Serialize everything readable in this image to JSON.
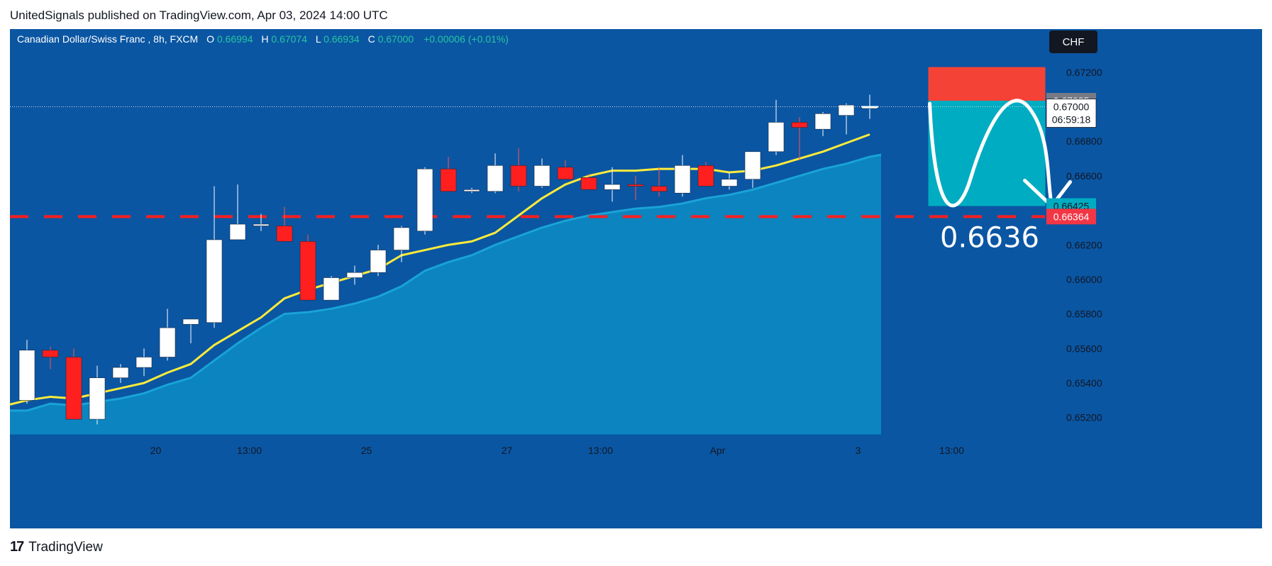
{
  "header": {
    "text": "UnitedSignals published on TradingView.com, Apr 03, 2024 14:00 UTC"
  },
  "footer": {
    "brand": "TradingView",
    "logo_glyph": "17"
  },
  "chart_data": {
    "type": "candlestick",
    "legend": {
      "symbol": "Canadian Dollar/Swiss Franc , 8h, FXCM",
      "o_label": "O",
      "o": "0.66994",
      "h_label": "H",
      "h": "0.67074",
      "l_label": "L",
      "l": "0.66934",
      "c_label": "C",
      "c": "0.67000",
      "change": "+0.00006 (+0.01%)"
    },
    "currency_badge": "CHF",
    "ylim": [
      0.651,
      0.6745
    ],
    "y_ticks": [
      "0.67200",
      "0.66800",
      "0.66600",
      "0.66200",
      "0.66000",
      "0.65800",
      "0.65600",
      "0.65400",
      "0.65200"
    ],
    "x_ticks": [
      {
        "label": "20",
        "i": 5.5
      },
      {
        "label": "13:00",
        "i": 9.5
      },
      {
        "label": "25",
        "i": 14.5
      },
      {
        "label": "27",
        "i": 20.5
      },
      {
        "label": "13:00",
        "i": 24.5
      },
      {
        "label": "Apr",
        "i": 29.5
      },
      {
        "label": "3",
        "i": 35.5
      },
      {
        "label": "13:00",
        "i": 39.5
      }
    ],
    "candles": [
      {
        "o": 0.653,
        "h": 0.6565,
        "l": 0.6528,
        "c": 0.6559
      },
      {
        "o": 0.6559,
        "h": 0.6561,
        "l": 0.6548,
        "c": 0.6555
      },
      {
        "o": 0.6555,
        "h": 0.656,
        "l": 0.6519,
        "c": 0.6519
      },
      {
        "o": 0.6519,
        "h": 0.655,
        "l": 0.6516,
        "c": 0.6543
      },
      {
        "o": 0.6543,
        "h": 0.6551,
        "l": 0.654,
        "c": 0.6549
      },
      {
        "o": 0.6549,
        "h": 0.656,
        "l": 0.6544,
        "c": 0.6555
      },
      {
        "o": 0.6555,
        "h": 0.6583,
        "l": 0.6553,
        "c": 0.6572
      },
      {
        "o": 0.6574,
        "h": 0.6576,
        "l": 0.6563,
        "c": 0.6577
      },
      {
        "o": 0.6575,
        "h": 0.6654,
        "l": 0.6572,
        "c": 0.6623
      },
      {
        "o": 0.6623,
        "h": 0.6655,
        "l": 0.6623,
        "c": 0.6632
      },
      {
        "o": 0.6631,
        "h": 0.6638,
        "l": 0.6628,
        "c": 0.6632
      },
      {
        "o": 0.6631,
        "h": 0.6642,
        "l": 0.6622,
        "c": 0.6622
      },
      {
        "o": 0.6622,
        "h": 0.6626,
        "l": 0.6588,
        "c": 0.6588
      },
      {
        "o": 0.6588,
        "h": 0.6602,
        "l": 0.6588,
        "c": 0.6601
      },
      {
        "o": 0.6601,
        "h": 0.6608,
        "l": 0.6597,
        "c": 0.6604
      },
      {
        "o": 0.6604,
        "h": 0.662,
        "l": 0.6602,
        "c": 0.6617
      },
      {
        "o": 0.6617,
        "h": 0.6631,
        "l": 0.661,
        "c": 0.663
      },
      {
        "o": 0.6628,
        "h": 0.6665,
        "l": 0.6626,
        "c": 0.6664
      },
      {
        "o": 0.6664,
        "h": 0.6671,
        "l": 0.6651,
        "c": 0.6651
      },
      {
        "o": 0.6651,
        "h": 0.6653,
        "l": 0.665,
        "c": 0.6652
      },
      {
        "o": 0.6651,
        "h": 0.6673,
        "l": 0.665,
        "c": 0.6666
      },
      {
        "o": 0.6666,
        "h": 0.6676,
        "l": 0.6651,
        "c": 0.6654
      },
      {
        "o": 0.6654,
        "h": 0.667,
        "l": 0.6653,
        "c": 0.6666
      },
      {
        "o": 0.6665,
        "h": 0.6669,
        "l": 0.6658,
        "c": 0.6658
      },
      {
        "o": 0.6659,
        "h": 0.6661,
        "l": 0.6652,
        "c": 0.6652
      },
      {
        "o": 0.6652,
        "h": 0.6665,
        "l": 0.6645,
        "c": 0.6655
      },
      {
        "o": 0.6655,
        "h": 0.666,
        "l": 0.6646,
        "c": 0.6654
      },
      {
        "o": 0.6654,
        "h": 0.6665,
        "l": 0.6648,
        "c": 0.6651
      },
      {
        "o": 0.665,
        "h": 0.6672,
        "l": 0.6648,
        "c": 0.6666
      },
      {
        "o": 0.6666,
        "h": 0.6668,
        "l": 0.6654,
        "c": 0.6654
      },
      {
        "o": 0.6654,
        "h": 0.6662,
        "l": 0.6652,
        "c": 0.6658
      },
      {
        "o": 0.6658,
        "h": 0.6672,
        "l": 0.6653,
        "c": 0.6674
      },
      {
        "o": 0.6674,
        "h": 0.6704,
        "l": 0.6672,
        "c": 0.6691
      },
      {
        "o": 0.6691,
        "h": 0.6694,
        "l": 0.6669,
        "c": 0.6688
      },
      {
        "o": 0.6687,
        "h": 0.6697,
        "l": 0.6683,
        "c": 0.6696
      },
      {
        "o": 0.6695,
        "h": 0.6702,
        "l": 0.6684,
        "c": 0.6701
      },
      {
        "o": 0.6699,
        "h": 0.6707,
        "l": 0.6693,
        "c": 0.67
      }
    ],
    "ma_yellow": [
      0.653,
      0.6532,
      0.6531,
      0.6534,
      0.6537,
      0.654,
      0.6546,
      0.6551,
      0.6562,
      0.657,
      0.6578,
      0.6589,
      0.6594,
      0.6598,
      0.6602,
      0.6606,
      0.6614,
      0.6617,
      0.662,
      0.6622,
      0.6627,
      0.6637,
      0.6647,
      0.6655,
      0.666,
      0.6663,
      0.6663,
      0.6664,
      0.6664,
      0.6664,
      0.6662,
      0.6663,
      0.6666,
      0.667,
      0.6674,
      0.6679,
      0.6684
    ],
    "ma_area": [
      0.6524,
      0.6528,
      0.6527,
      0.6529,
      0.6531,
      0.6534,
      0.6539,
      0.6543,
      0.6553,
      0.6563,
      0.6572,
      0.658,
      0.6581,
      0.6583,
      0.6586,
      0.659,
      0.6596,
      0.6605,
      0.661,
      0.6614,
      0.662,
      0.6625,
      0.663,
      0.6634,
      0.6637,
      0.6639,
      0.6641,
      0.6642,
      0.6644,
      0.6647,
      0.6649,
      0.6652,
      0.6656,
      0.666,
      0.6664,
      0.6667,
      0.6671
    ],
    "target": {
      "value": 0.66364,
      "label": "0.66364",
      "annotation": "0.6636"
    },
    "position": {
      "entry": 0.67035,
      "stop": 0.6723,
      "take_profit": 0.66425,
      "entry_label": "0.67035",
      "tp_label": "0.66425",
      "start_i": 38.5,
      "end_i": 43.5
    },
    "last_price": {
      "value": 0.67,
      "label": "0.67000",
      "countdown": "06:59:18"
    },
    "colors": {
      "background": "#0a56a3",
      "up": "#ffffff",
      "down": "#ff1f1f",
      "ma_yellow": "#ffeb3b",
      "ma_area": "#0c8cc4",
      "target_line": "#ff1f1f",
      "stop_zone": "#f44336",
      "profit_zone": "#00acc1"
    }
  }
}
